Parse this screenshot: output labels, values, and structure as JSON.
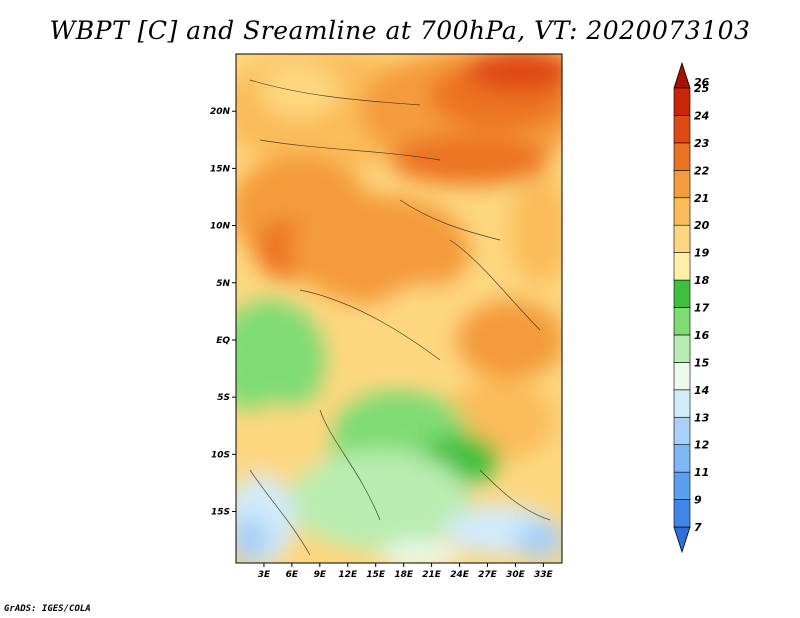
{
  "title": "WBPT [C] and Sreamline at 700hPa, VT: 2020073103",
  "credit": "GrADS: IGES/COLA",
  "map": {
    "lat_labels": [
      "20N",
      "15N",
      "10N",
      "5N",
      "EQ",
      "5S",
      "10S",
      "15S"
    ],
    "lon_labels": [
      "3E",
      "6E",
      "9E",
      "12E",
      "15E",
      "18E",
      "21E",
      "24E",
      "27E",
      "30E",
      "33E"
    ],
    "lon_range": [
      0,
      35
    ],
    "lat_range": [
      -19.5,
      25
    ]
  },
  "colorbar": {
    "labels": [
      "7",
      "9",
      "11",
      "12",
      "13",
      "14",
      "15",
      "16",
      "17",
      "18",
      "19",
      "20",
      "21",
      "22",
      "23",
      "24",
      "25",
      "26"
    ],
    "colors": [
      "#2e6ddb",
      "#3f86e6",
      "#5b9ff0",
      "#7fb7f5",
      "#a9d0f8",
      "#d1ebfb",
      "#ecf9ec",
      "#b9ecb0",
      "#7fdc74",
      "#3fbf3f",
      "#fff0a6",
      "#fdd77f",
      "#fbbc5a",
      "#f49b3b",
      "#ec7322",
      "#df4a12",
      "#cc2507",
      "#a91000"
    ]
  }
}
